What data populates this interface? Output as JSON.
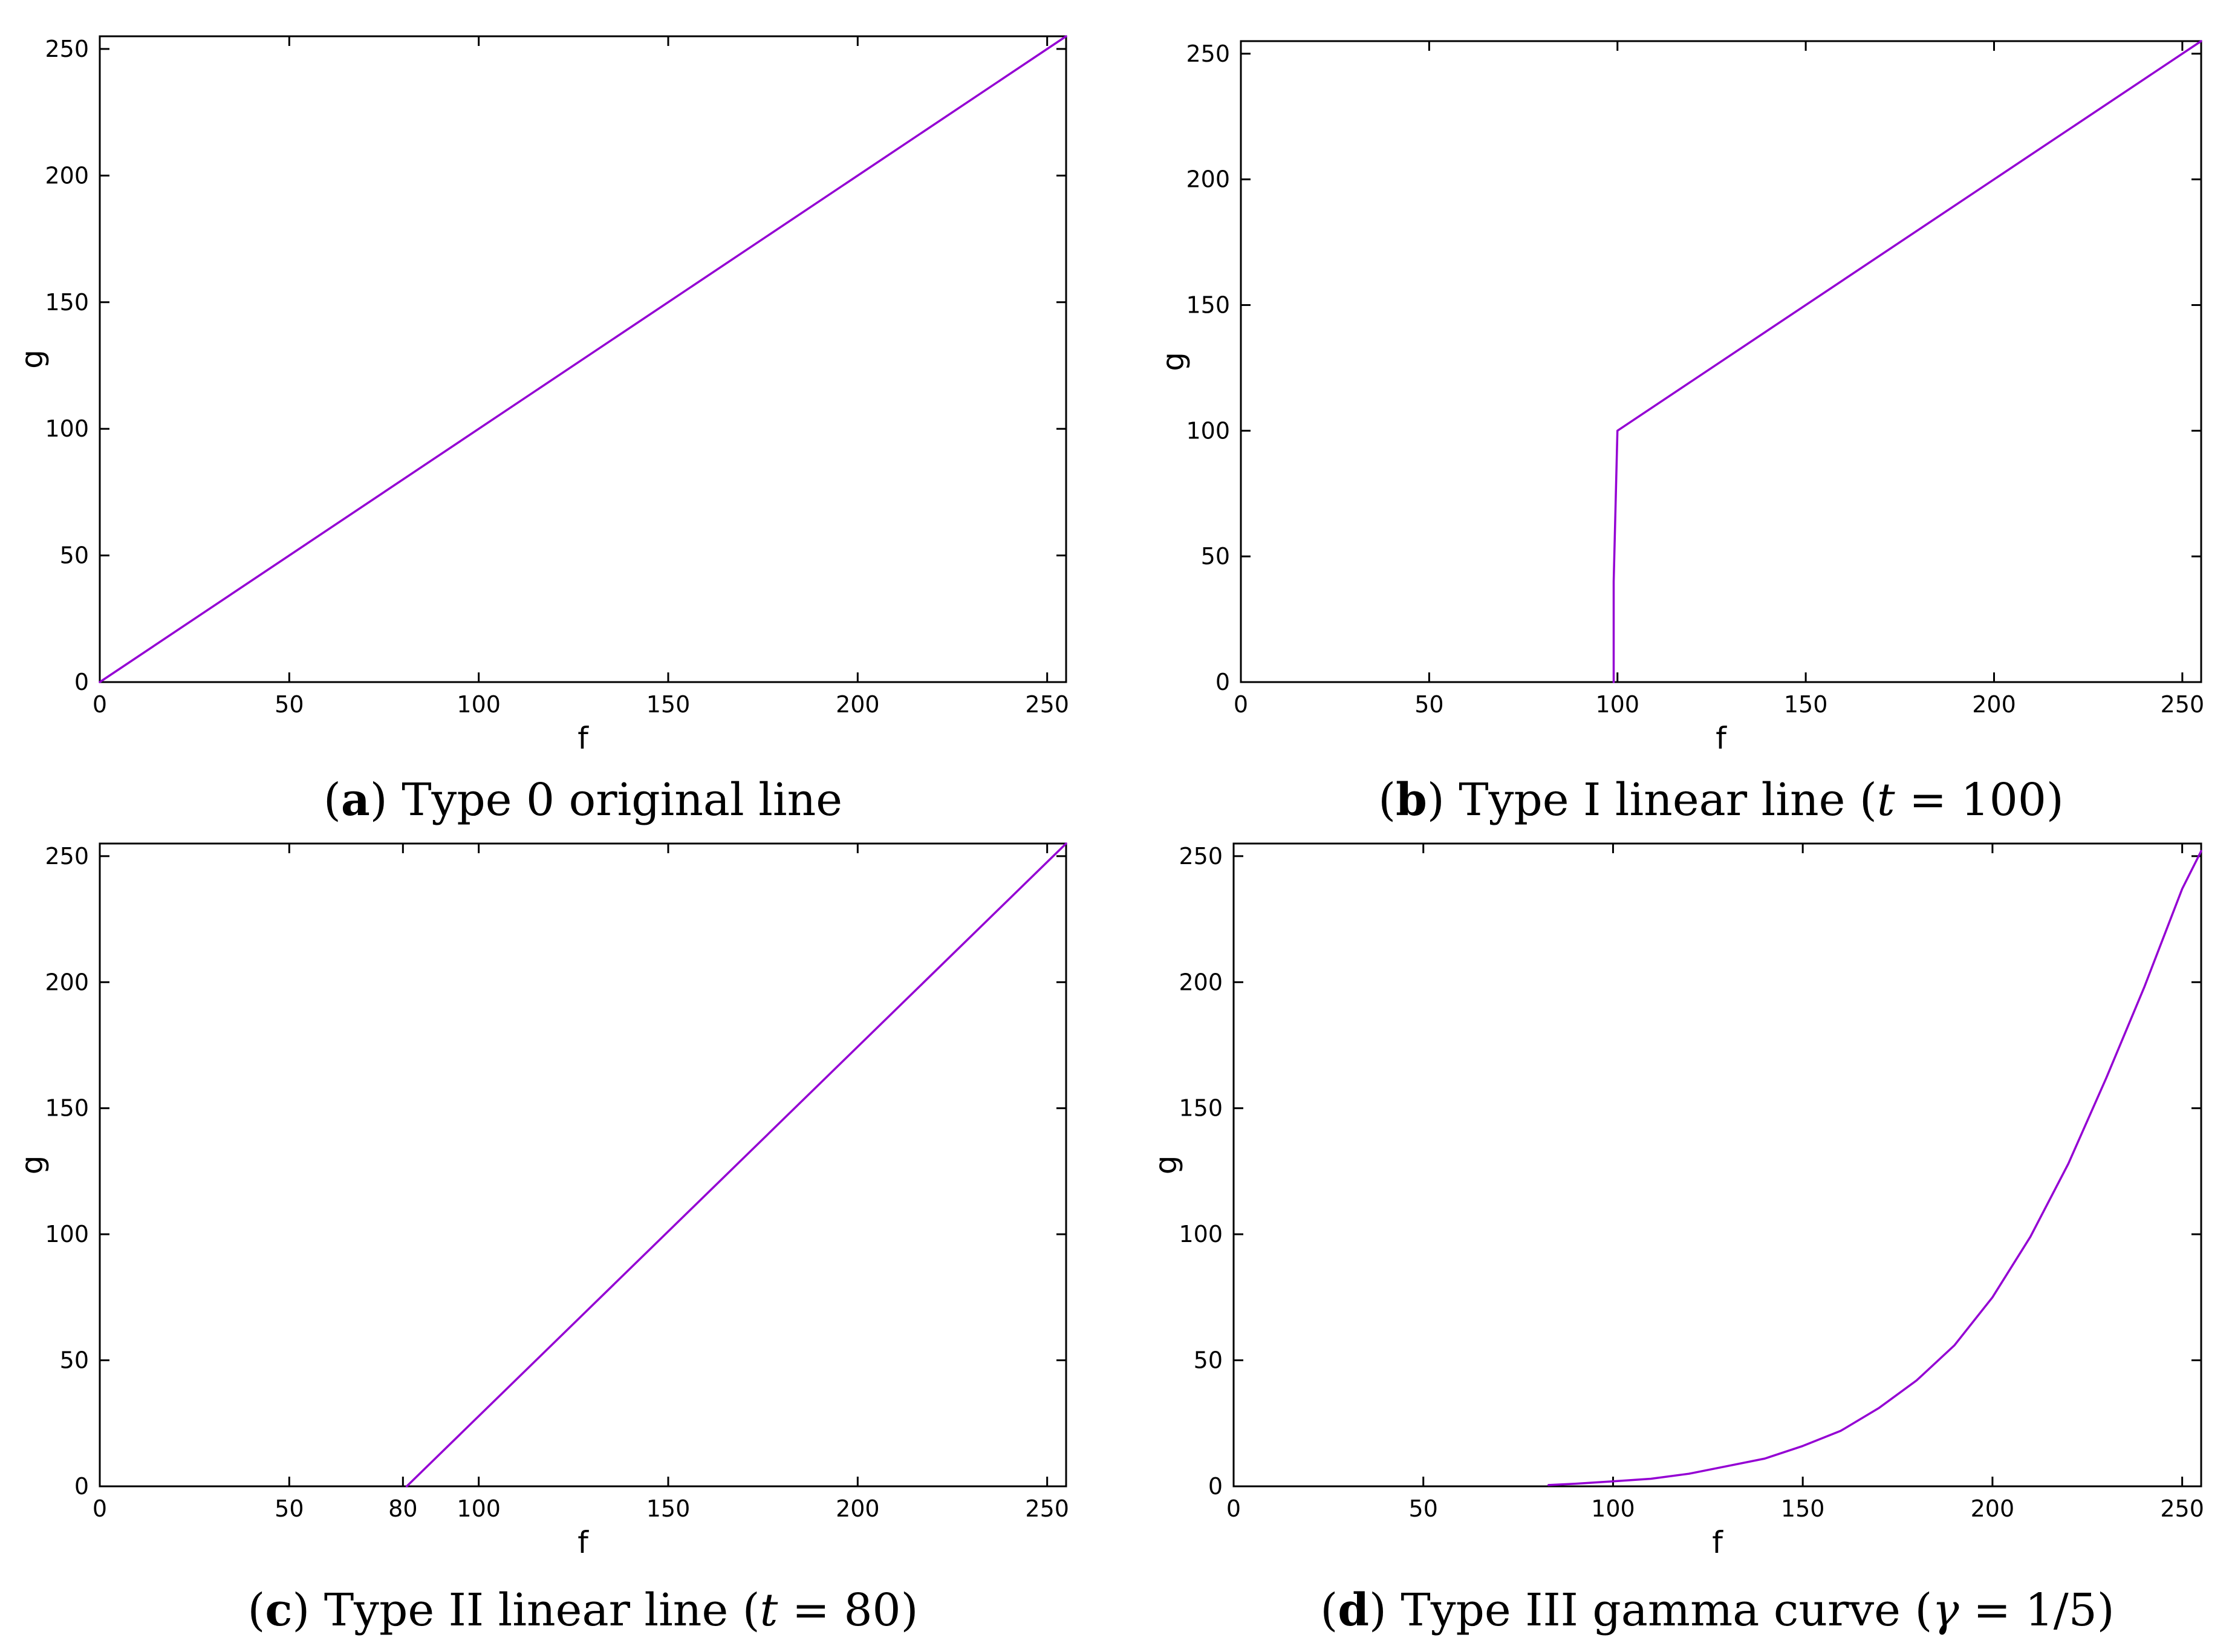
{
  "series_color": "#9400D3",
  "chart_data": [
    {
      "panel": "a",
      "type": "line",
      "caption": {
        "letter": "a",
        "text": "Type 0 original line",
        "param": "",
        "value": ""
      },
      "xlabel": "f",
      "ylabel": "g",
      "xlim": [
        0,
        255
      ],
      "ylim": [
        0,
        255
      ],
      "xticks": [
        0,
        50,
        100,
        150,
        200,
        250
      ],
      "yticks": [
        0,
        50,
        100,
        150,
        200,
        250
      ],
      "series": [
        {
          "name": "Type 0",
          "x": [
            0,
            255
          ],
          "y": [
            0,
            255
          ]
        }
      ]
    },
    {
      "panel": "b",
      "type": "line",
      "caption": {
        "letter": "b",
        "text": "Type I linear line",
        "param": "t",
        "value": "100"
      },
      "xlabel": "f",
      "ylabel": "g",
      "xlim": [
        0,
        255
      ],
      "ylim": [
        0,
        255
      ],
      "xticks": [
        0,
        50,
        100,
        150,
        200,
        250
      ],
      "yticks": [
        0,
        50,
        100,
        150,
        200,
        250
      ],
      "series": [
        {
          "name": "Type I",
          "x": [
            99,
            99,
            100,
            255
          ],
          "y": [
            0,
            40,
            100,
            255
          ]
        }
      ]
    },
    {
      "panel": "c",
      "type": "line",
      "caption": {
        "letter": "c",
        "text": "Type II linear line",
        "param": "t",
        "value": "80"
      },
      "xlabel": "f",
      "ylabel": "g",
      "xlim": [
        0,
        255
      ],
      "ylim": [
        0,
        255
      ],
      "xticks": [
        0,
        50,
        80,
        100,
        150,
        200,
        250
      ],
      "yticks": [
        0,
        50,
        100,
        150,
        200,
        250
      ],
      "series": [
        {
          "name": "Type II",
          "x": [
            81,
            255
          ],
          "y": [
            0,
            255
          ]
        }
      ]
    },
    {
      "panel": "d",
      "type": "line",
      "caption": {
        "letter": "d",
        "text": "Type III gamma curve",
        "param": "γ",
        "value": "1/5"
      },
      "xlabel": "f",
      "ylabel": "g",
      "xlim": [
        0,
        255
      ],
      "ylim": [
        0,
        255
      ],
      "xticks": [
        0,
        50,
        100,
        150,
        200,
        250
      ],
      "yticks": [
        0,
        50,
        100,
        150,
        200,
        250
      ],
      "series": [
        {
          "name": "Type III",
          "x": [
            83,
            90,
            100,
            110,
            120,
            130,
            140,
            150,
            160,
            170,
            180,
            190,
            200,
            210,
            220,
            230,
            240,
            250,
            255
          ],
          "y": [
            0.5,
            1,
            2,
            3,
            5,
            8,
            11,
            16,
            22,
            31,
            42,
            56,
            75,
            99,
            128,
            162,
            198,
            237,
            252
          ]
        }
      ]
    }
  ]
}
